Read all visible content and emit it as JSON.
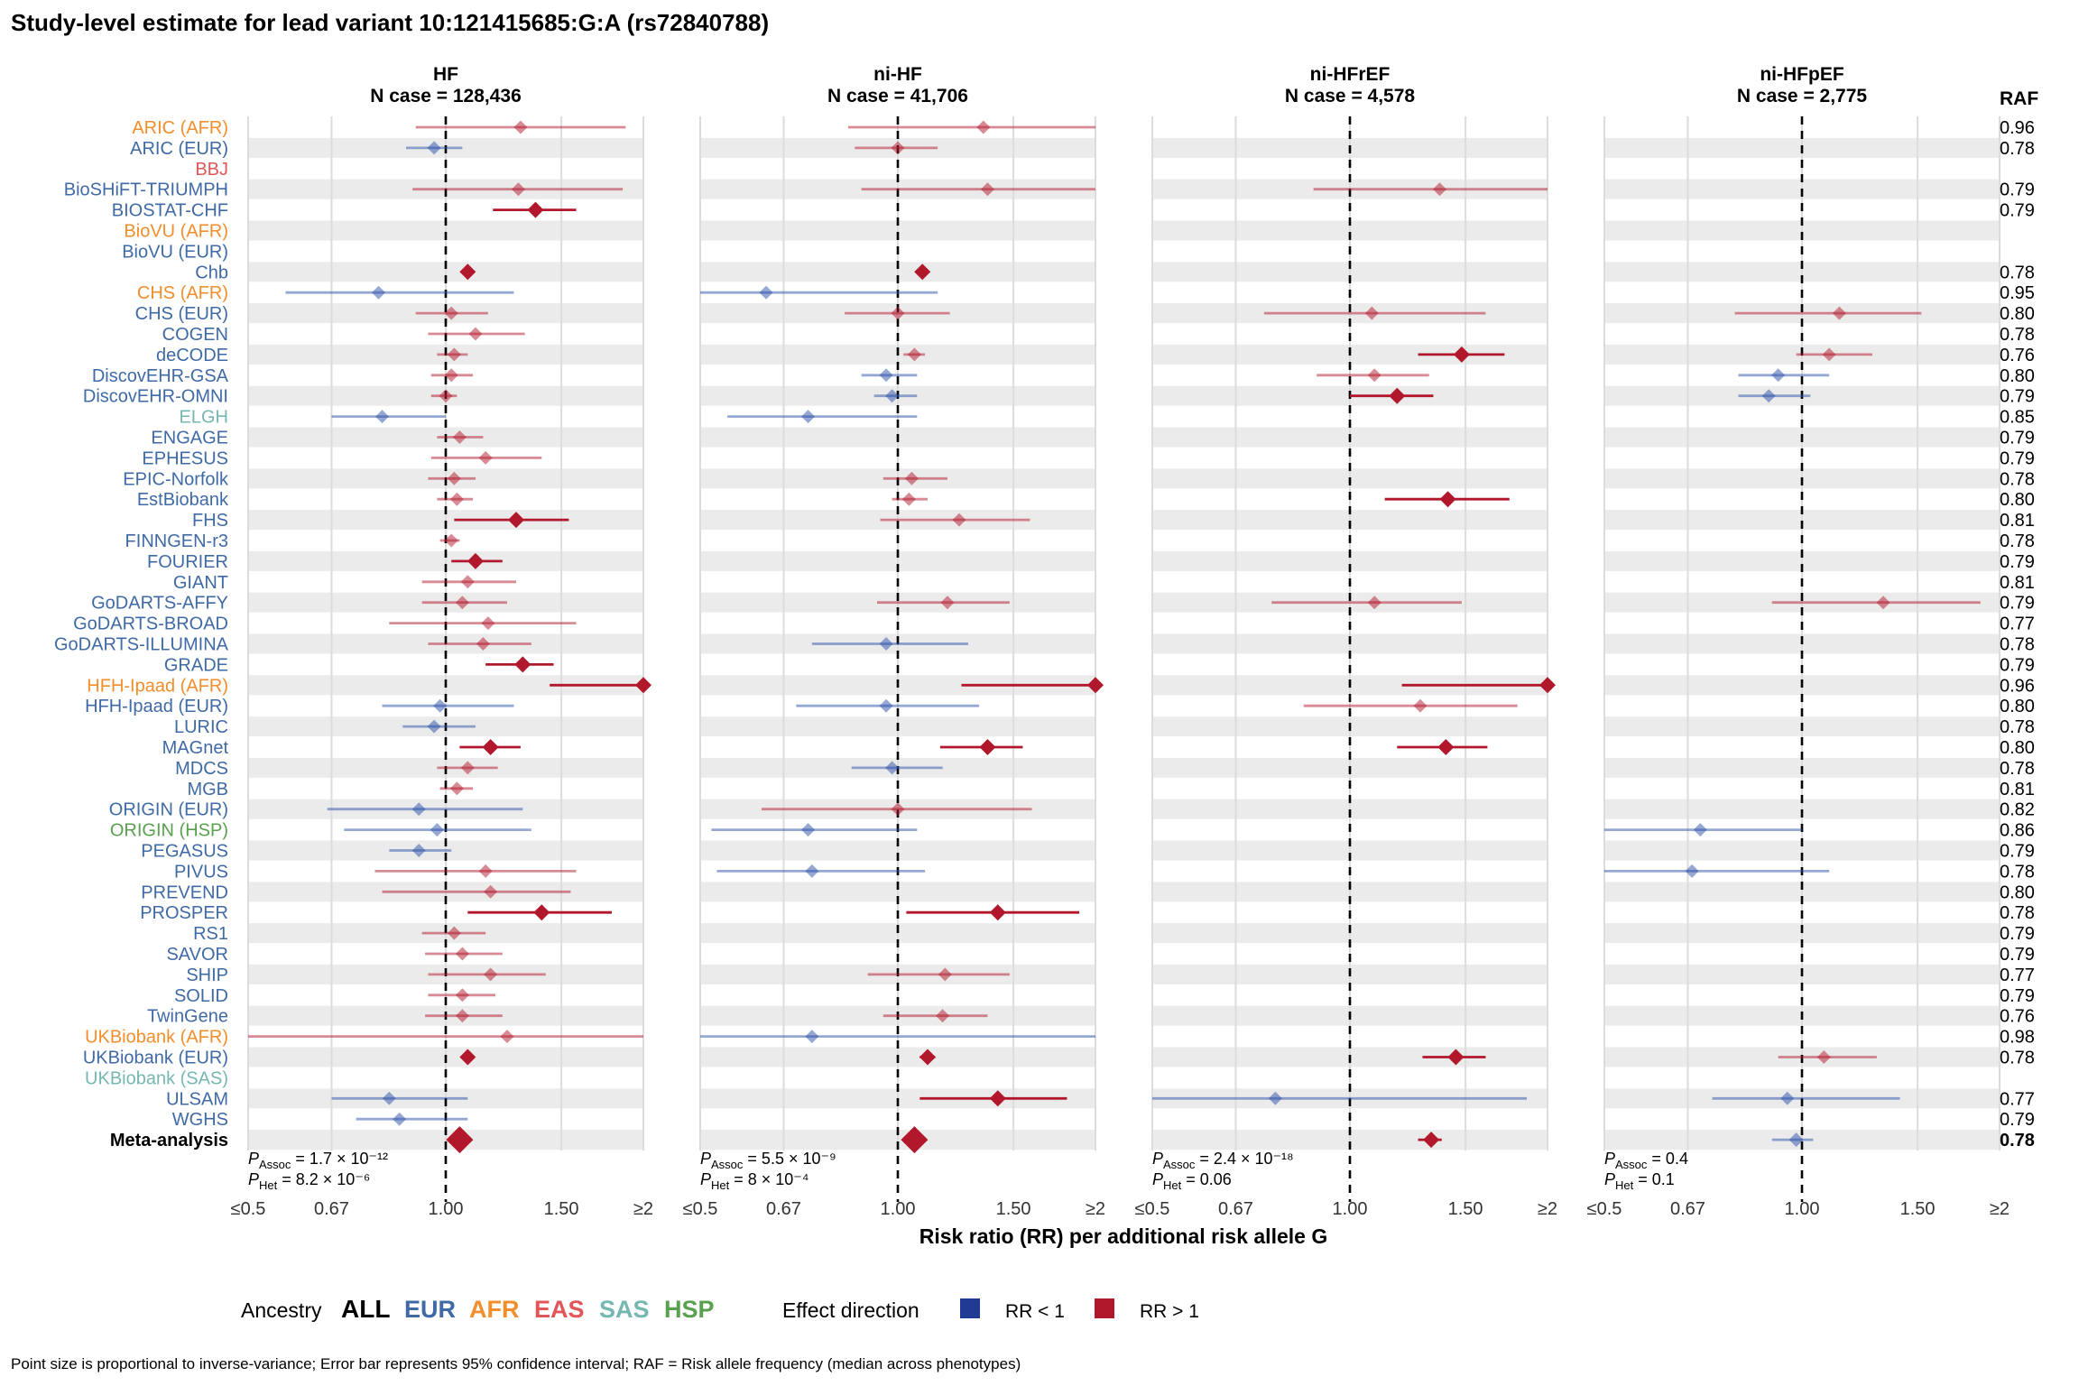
{
  "title": "Study-level estimate for lead variant 10:121415685:G:A (rs72840788)",
  "raf_header": "RAF",
  "x_label": "Risk ratio (RR) per additional risk allele G",
  "x_ticks": [
    "≤0.5",
    "0.67",
    "1.00",
    "1.50",
    "≥2"
  ],
  "panels": [
    {
      "name": "HF",
      "n_case": "N case = 128,436",
      "p_assoc": "1.7 × 10⁻¹²",
      "p_het": "8.2 × 10⁻⁶"
    },
    {
      "name": "ni-HF",
      "n_case": "N case = 41,706",
      "p_assoc": "5.5 × 10⁻⁹",
      "p_het": "8 × 10⁻⁴"
    },
    {
      "name": "ni-HFrEF",
      "n_case": "N case = 4,578",
      "p_assoc": "2.4 × 10⁻¹⁸",
      "p_het": "0.06"
    },
    {
      "name": "ni-HFpEF",
      "n_case": "N case = 2,775",
      "p_assoc": "0.4",
      "p_het": "0.1"
    }
  ],
  "legend": {
    "ancestry_title": "Ancestry",
    "ancestries": [
      {
        "label": "ALL",
        "color": "#000000"
      },
      {
        "label": "EUR",
        "color": "#3f6aa6"
      },
      {
        "label": "AFR",
        "color": "#f28e2b"
      },
      {
        "label": "EAS",
        "color": "#e15759"
      },
      {
        "label": "SAS",
        "color": "#76b7b2"
      },
      {
        "label": "HSP",
        "color": "#59a14f"
      }
    ],
    "effect_title": "Effect direction",
    "effects": [
      {
        "label": "RR < 1",
        "color": "#1f3a93"
      },
      {
        "label": "RR > 1",
        "color": "#b2182b"
      }
    ]
  },
  "footnote": "Point size is proportional to inverse-variance; Error bar represents 95% confidence interval; RAF = Risk allele frequency (median across phenotypes)",
  "colors": {
    "up": "#b2182b",
    "down": "#2c4fa8",
    "band": "#ebebeb",
    "grid": "#dcdcdc"
  },
  "chart_data": {
    "type": "forest",
    "x_scale": "log",
    "xlim": [
      0.5,
      2
    ],
    "reference_line": 1.0,
    "studies": [
      {
        "name": "ARIC (AFR)",
        "ancestry": "AFR",
        "raf": "0.96",
        "est": [
          [
            1.3,
            0.9,
            1.88,
            "f"
          ],
          [
            1.35,
            0.84,
            2.05,
            "f"
          ],
          null,
          null
        ]
      },
      {
        "name": "ARIC (EUR)",
        "ancestry": "EUR",
        "raf": "0.78",
        "est": [
          [
            0.96,
            0.87,
            1.06,
            "f"
          ],
          [
            1.0,
            0.86,
            1.15,
            "f"
          ],
          null,
          null
        ]
      },
      {
        "name": "BBJ",
        "ancestry": "EAS",
        "raf": "",
        "est": [
          null,
          null,
          null,
          null
        ]
      },
      {
        "name": "BioSHiFT-TRIUMPH",
        "ancestry": "EUR",
        "raf": "0.79",
        "est": [
          [
            1.29,
            0.89,
            1.86,
            "f"
          ],
          [
            1.37,
            0.88,
            2.0,
            "f"
          ],
          [
            1.37,
            0.88,
            2.0,
            "f"
          ],
          null
        ]
      },
      {
        "name": "BIOSTAT-CHF",
        "ancestry": "EUR",
        "raf": "0.79",
        "est": [
          [
            1.37,
            1.18,
            1.58,
            "s"
          ],
          null,
          null,
          null
        ]
      },
      {
        "name": "BioVU (AFR)",
        "ancestry": "AFR",
        "raf": "",
        "est": [
          null,
          null,
          null,
          null
        ]
      },
      {
        "name": "BioVU (EUR)",
        "ancestry": "EUR",
        "raf": "",
        "est": [
          null,
          null,
          null,
          null
        ]
      },
      {
        "name": "Chb",
        "ancestry": "EUR",
        "raf": "0.78",
        "est": [
          [
            1.08,
            1.08,
            1.08,
            "s"
          ],
          [
            1.09,
            1.09,
            1.09,
            "s"
          ],
          null,
          null
        ]
      },
      {
        "name": "CHS (AFR)",
        "ancestry": "AFR",
        "raf": "0.95",
        "est": [
          [
            0.79,
            0.57,
            1.27,
            "f"
          ],
          [
            0.63,
            0.5,
            1.15,
            "f"
          ],
          null,
          null
        ]
      },
      {
        "name": "CHS (EUR)",
        "ancestry": "EUR",
        "raf": "0.80",
        "est": [
          [
            1.02,
            0.9,
            1.16,
            "f"
          ],
          [
            1.0,
            0.83,
            1.2,
            "f"
          ],
          [
            1.08,
            0.74,
            1.61,
            "f"
          ],
          [
            1.14,
            0.79,
            1.52,
            "f"
          ]
        ]
      },
      {
        "name": "COGEN",
        "ancestry": "EUR",
        "raf": "0.78",
        "est": [
          [
            1.11,
            0.94,
            1.32,
            "f"
          ],
          null,
          null,
          null
        ]
      },
      {
        "name": "deCODE",
        "ancestry": "EUR",
        "raf": "0.76",
        "est": [
          [
            1.03,
            0.97,
            1.08,
            "f"
          ],
          [
            1.06,
            1.02,
            1.1,
            "f"
          ],
          [
            1.48,
            1.27,
            1.72,
            "s"
          ],
          [
            1.1,
            0.98,
            1.28,
            "f"
          ]
        ]
      },
      {
        "name": "DiscovEHR-GSA",
        "ancestry": "EUR",
        "raf": "0.80",
        "est": [
          [
            1.02,
            0.95,
            1.1,
            "f"
          ],
          [
            0.96,
            0.88,
            1.07,
            "f"
          ],
          [
            1.09,
            0.89,
            1.32,
            "f"
          ],
          [
            0.92,
            0.8,
            1.1,
            "f"
          ]
        ]
      },
      {
        "name": "DiscovEHR-OMNI",
        "ancestry": "EUR",
        "raf": "0.79",
        "est": [
          [
            1.0,
            0.95,
            1.04,
            "f"
          ],
          [
            0.98,
            0.92,
            1.07,
            "f"
          ],
          [
            1.18,
            1.0,
            1.34,
            "s"
          ],
          [
            0.89,
            0.8,
            1.03,
            "f"
          ]
        ]
      },
      {
        "name": "ELGH",
        "ancestry": "SAS",
        "raf": "0.85",
        "est": [
          [
            0.8,
            0.67,
            1.0,
            "f"
          ],
          [
            0.73,
            0.55,
            1.07,
            "f"
          ],
          null,
          null
        ]
      },
      {
        "name": "ENGAGE",
        "ancestry": "EUR",
        "raf": "0.79",
        "est": [
          [
            1.05,
            0.97,
            1.14,
            "f"
          ],
          null,
          null,
          null
        ]
      },
      {
        "name": "EPHESUS",
        "ancestry": "EUR",
        "raf": "0.79",
        "est": [
          [
            1.15,
            0.95,
            1.4,
            "f"
          ],
          null,
          null,
          null
        ]
      },
      {
        "name": "EPIC-Norfolk",
        "ancestry": "EUR",
        "raf": "0.78",
        "est": [
          [
            1.03,
            0.94,
            1.11,
            "f"
          ],
          [
            1.05,
            0.95,
            1.19,
            "f"
          ],
          null,
          null
        ]
      },
      {
        "name": "EstBiobank",
        "ancestry": "EUR",
        "raf": "0.80",
        "est": [
          [
            1.04,
            0.97,
            1.1,
            "f"
          ],
          [
            1.04,
            0.98,
            1.11,
            "f"
          ],
          [
            1.41,
            1.13,
            1.75,
            "s"
          ],
          null
        ]
      },
      {
        "name": "FHS",
        "ancestry": "EUR",
        "raf": "0.81",
        "est": [
          [
            1.28,
            1.03,
            1.54,
            "s"
          ],
          [
            1.24,
            0.94,
            1.59,
            "f"
          ],
          null,
          null
        ]
      },
      {
        "name": "FINNGEN-r3",
        "ancestry": "EUR",
        "raf": "0.78",
        "est": [
          [
            1.02,
            0.98,
            1.05,
            "f"
          ],
          null,
          null,
          null
        ]
      },
      {
        "name": "FOURIER",
        "ancestry": "EUR",
        "raf": "0.79",
        "est": [
          [
            1.11,
            1.02,
            1.22,
            "s"
          ],
          null,
          null,
          null
        ]
      },
      {
        "name": "GIANT",
        "ancestry": "EUR",
        "raf": "0.81",
        "est": [
          [
            1.08,
            0.92,
            1.28,
            "f"
          ],
          null,
          null,
          null
        ]
      },
      {
        "name": "GoDARTS-AFFY",
        "ancestry": "EUR",
        "raf": "0.79",
        "est": [
          [
            1.06,
            0.92,
            1.24,
            "f"
          ],
          [
            1.19,
            0.93,
            1.48,
            "f"
          ],
          [
            1.09,
            0.76,
            1.48,
            "f"
          ],
          [
            1.33,
            0.9,
            1.87,
            "f"
          ]
        ]
      },
      {
        "name": "GoDARTS-BROAD",
        "ancestry": "EUR",
        "raf": "0.77",
        "est": [
          [
            1.16,
            0.82,
            1.58,
            "f"
          ],
          null,
          null,
          null
        ]
      },
      {
        "name": "GoDARTS-ILLUMINA",
        "ancestry": "EUR",
        "raf": "0.78",
        "est": [
          [
            1.14,
            0.94,
            1.35,
            "f"
          ],
          [
            0.96,
            0.74,
            1.28,
            "f"
          ],
          null,
          null
        ]
      },
      {
        "name": "GRADE",
        "ancestry": "EUR",
        "raf": "0.79",
        "est": [
          [
            1.31,
            1.15,
            1.46,
            "s"
          ],
          null,
          null,
          null
        ]
      },
      {
        "name": "HFH-Ipaad (AFR)",
        "ancestry": "AFR",
        "raf": "0.96",
        "est": [
          [
            2.0,
            1.44,
            2.0,
            "s"
          ],
          [
            2.0,
            1.25,
            2.0,
            "s"
          ],
          [
            2.0,
            1.2,
            2.0,
            "s"
          ],
          null
        ]
      },
      {
        "name": "HFH-Ipaad (EUR)",
        "ancestry": "EUR",
        "raf": "0.80",
        "est": [
          [
            0.98,
            0.8,
            1.27,
            "f"
          ],
          [
            0.96,
            0.7,
            1.33,
            "f"
          ],
          [
            1.28,
            0.85,
            1.8,
            "f"
          ],
          null
        ]
      },
      {
        "name": "LURIC",
        "ancestry": "EUR",
        "raf": "0.78",
        "est": [
          [
            0.96,
            0.86,
            1.11,
            "f"
          ],
          null,
          null,
          null
        ]
      },
      {
        "name": "MAGnet",
        "ancestry": "EUR",
        "raf": "0.80",
        "est": [
          [
            1.17,
            1.05,
            1.3,
            "s"
          ],
          [
            1.37,
            1.16,
            1.55,
            "s"
          ],
          [
            1.4,
            1.18,
            1.62,
            "s"
          ],
          null
        ]
      },
      {
        "name": "MDCS",
        "ancestry": "EUR",
        "raf": "0.78",
        "est": [
          [
            1.08,
            0.97,
            1.2,
            "f"
          ],
          [
            0.98,
            0.85,
            1.17,
            "f"
          ],
          null,
          null
        ]
      },
      {
        "name": "MGB",
        "ancestry": "EUR",
        "raf": "0.81",
        "est": [
          [
            1.04,
            0.98,
            1.1,
            "f"
          ],
          null,
          null,
          null
        ]
      },
      {
        "name": "ORIGIN (EUR)",
        "ancestry": "EUR",
        "raf": "0.82",
        "est": [
          [
            0.91,
            0.66,
            1.31,
            "f"
          ],
          [
            1.0,
            0.62,
            1.6,
            "f"
          ],
          null,
          null
        ]
      },
      {
        "name": "ORIGIN (HSP)",
        "ancestry": "HSP",
        "raf": "0.86",
        "est": [
          [
            0.97,
            0.7,
            1.35,
            "f"
          ],
          [
            0.73,
            0.52,
            1.07,
            "f"
          ],
          null,
          [
            0.7,
            0.5,
            1.0,
            "f"
          ]
        ]
      },
      {
        "name": "PEGASUS",
        "ancestry": "EUR",
        "raf": "0.79",
        "est": [
          [
            0.91,
            0.82,
            1.02,
            "f"
          ],
          null,
          null,
          null
        ]
      },
      {
        "name": "PIVUS",
        "ancestry": "EUR",
        "raf": "0.78",
        "est": [
          [
            1.15,
            0.78,
            1.58,
            "f"
          ],
          [
            0.74,
            0.53,
            1.1,
            "f"
          ],
          null,
          [
            0.68,
            0.5,
            1.1,
            "f"
          ]
        ]
      },
      {
        "name": "PREVEND",
        "ancestry": "EUR",
        "raf": "0.80",
        "est": [
          [
            1.17,
            0.8,
            1.55,
            "f"
          ],
          null,
          null,
          null
        ]
      },
      {
        "name": "PROSPER",
        "ancestry": "EUR",
        "raf": "0.78",
        "est": [
          [
            1.4,
            1.08,
            1.79,
            "s"
          ],
          [
            1.42,
            1.03,
            1.89,
            "s"
          ],
          null,
          null
        ]
      },
      {
        "name": "RS1",
        "ancestry": "EUR",
        "raf": "0.79",
        "est": [
          [
            1.03,
            0.92,
            1.15,
            "f"
          ],
          null,
          null,
          null
        ]
      },
      {
        "name": "SAVOR",
        "ancestry": "EUR",
        "raf": "0.79",
        "est": [
          [
            1.06,
            0.93,
            1.22,
            "f"
          ],
          null,
          null,
          null
        ]
      },
      {
        "name": "SHIP",
        "ancestry": "EUR",
        "raf": "0.77",
        "est": [
          [
            1.17,
            0.94,
            1.42,
            "f"
          ],
          [
            1.18,
            0.9,
            1.48,
            "f"
          ],
          null,
          null
        ]
      },
      {
        "name": "SOLID",
        "ancestry": "EUR",
        "raf": "0.79",
        "est": [
          [
            1.06,
            0.94,
            1.19,
            "f"
          ],
          null,
          null,
          null
        ]
      },
      {
        "name": "TwinGene",
        "ancestry": "EUR",
        "raf": "0.76",
        "est": [
          [
            1.06,
            0.93,
            1.22,
            "f"
          ],
          [
            1.17,
            0.95,
            1.37,
            "f"
          ],
          null,
          null
        ]
      },
      {
        "name": "UKBiobank (AFR)",
        "ancestry": "AFR",
        "raf": "0.98",
        "est": [
          [
            1.24,
            0.5,
            2.0,
            "f"
          ],
          [
            0.74,
            0.5,
            2.0,
            "f"
          ],
          null,
          null
        ]
      },
      {
        "name": "UKBiobank (EUR)",
        "ancestry": "EUR",
        "raf": "0.78",
        "est": [
          [
            1.08,
            1.08,
            1.08,
            "s"
          ],
          [
            1.11,
            1.08,
            1.14,
            "s"
          ],
          [
            1.45,
            1.29,
            1.61,
            "s"
          ],
          [
            1.08,
            0.92,
            1.3,
            "f"
          ]
        ]
      },
      {
        "name": "UKBiobank (SAS)",
        "ancestry": "SAS",
        "raf": "",
        "est": [
          null,
          null,
          null,
          null
        ]
      },
      {
        "name": "ULSAM",
        "ancestry": "EUR",
        "raf": "0.77",
        "est": [
          [
            0.82,
            0.67,
            1.08,
            "f"
          ],
          [
            1.42,
            1.08,
            1.81,
            "s"
          ],
          [
            0.77,
            0.5,
            1.86,
            "f"
          ],
          [
            0.95,
            0.73,
            1.41,
            "f"
          ]
        ]
      },
      {
        "name": "WGHS",
        "ancestry": "EUR",
        "raf": "0.79",
        "est": [
          [
            0.85,
            0.73,
            1.08,
            "f"
          ],
          null,
          null,
          null
        ]
      },
      {
        "name": "Meta-analysis",
        "ancestry": "ALL",
        "raf": "0.78",
        "meta": true,
        "est": [
          [
            1.05,
            1.05,
            1.05,
            "s"
          ],
          [
            1.06,
            1.06,
            1.06,
            "s"
          ],
          [
            1.33,
            1.27,
            1.38,
            "s"
          ],
          [
            0.98,
            0.9,
            1.04,
            "f"
          ]
        ]
      }
    ]
  }
}
